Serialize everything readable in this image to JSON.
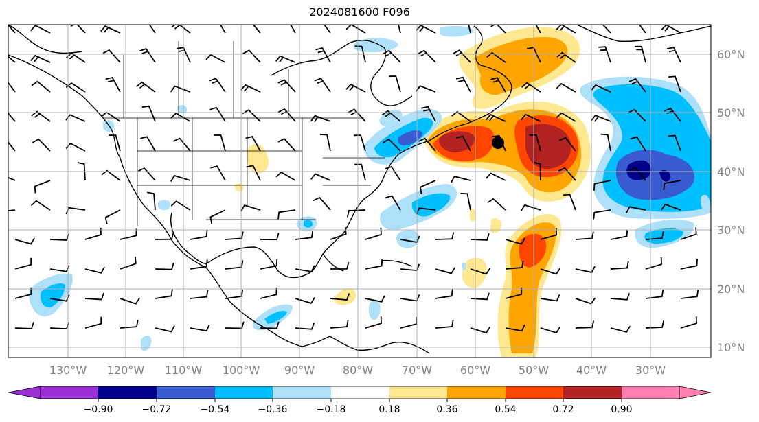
{
  "title": "2024081600 F096",
  "longitude_labels": [
    "130°W",
    "120°W",
    "110°W",
    "100°W",
    "90°W",
    "80°W",
    "70°W",
    "60°W",
    "50°W",
    "40°W",
    "30°W"
  ],
  "latitude_labels": [
    "60°N",
    "50°N",
    "40°N",
    "30°N",
    "20°N",
    "10°N"
  ],
  "colorbar": {
    "tick_labels": [
      "−0.90",
      "−0.72",
      "−0.54",
      "−0.36",
      "−0.18",
      "0.18",
      "0.36",
      "0.54",
      "0.72",
      "0.90"
    ],
    "colors": [
      "#9b30d4",
      "#00008b",
      "#3a5bd0",
      "#00bfff",
      "#aee0fa",
      "#ffffff",
      "#ffe88f",
      "#ffa500",
      "#ff4500",
      "#b22222",
      "#ff80b0"
    ]
  },
  "field_colors": {
    "neg_deep": "#3a48c8",
    "neg_mid": "#00bfff",
    "neg_light": "#aee0fa",
    "pos_light": "#ffe88f",
    "pos_mid": "#ffa500",
    "pos_strong": "#ff4500",
    "pos_max": "#b22222"
  }
}
